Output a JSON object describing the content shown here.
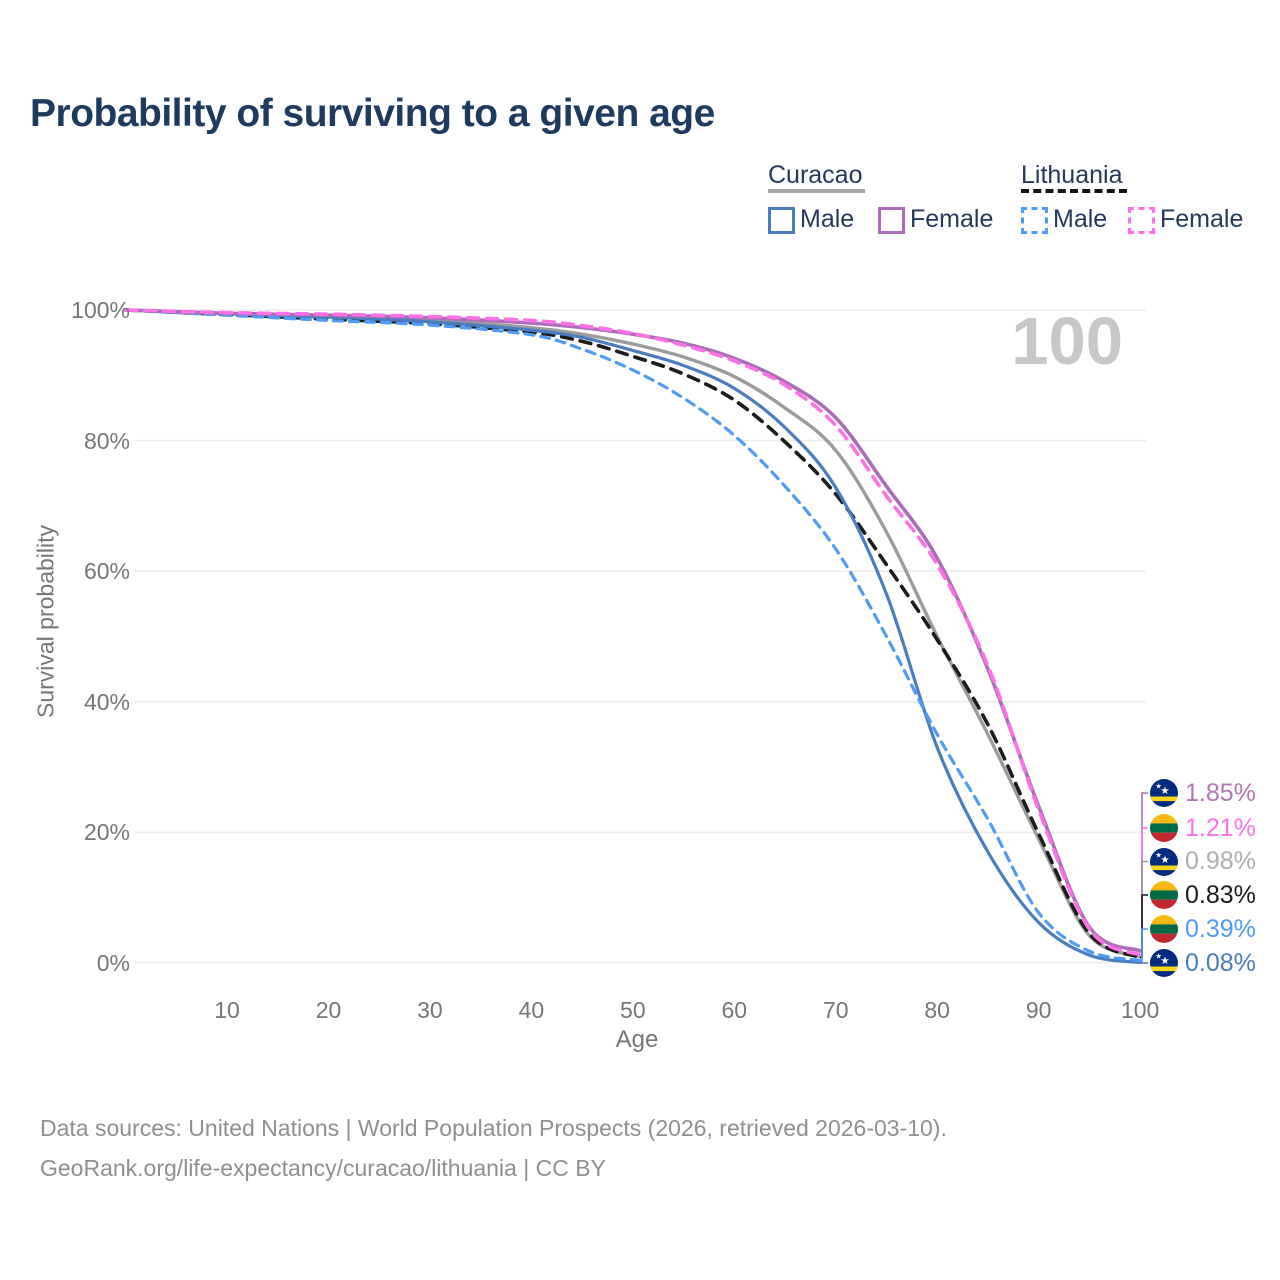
{
  "header": {
    "title": "Probability of surviving to a given age"
  },
  "chart": {
    "age_counter": "100"
  },
  "legend": {
    "groups": [
      {
        "country": "Curacao",
        "line_style": "solid",
        "underline_color": "#a5a5a5",
        "items": [
          {
            "label": "Male",
            "color": "#4a7dbf"
          },
          {
            "label": "Female",
            "color": "#ab6db8"
          }
        ]
      },
      {
        "country": "Lithuania",
        "line_style": "dashed",
        "underline_color": "#141414",
        "items": [
          {
            "label": "Male",
            "color": "#4f9bf5"
          },
          {
            "label": "Female",
            "color": "#fc71e5"
          }
        ]
      }
    ]
  },
  "chart_data": {
    "type": "line",
    "title": "Probability of surviving to a given age",
    "xlabel": "Age",
    "ylabel": "Survival probability",
    "xlim": [
      0,
      100
    ],
    "ylim": [
      0,
      100
    ],
    "grid": "horizontal",
    "x_ticks": [
      10,
      20,
      30,
      40,
      50,
      60,
      70,
      80,
      90,
      100
    ],
    "y_ticks": [
      {
        "value": 0,
        "label": "0%"
      },
      {
        "value": 20,
        "label": "20%"
      },
      {
        "value": 40,
        "label": "40%"
      },
      {
        "value": 60,
        "label": "60%"
      },
      {
        "value": 80,
        "label": "80%"
      },
      {
        "value": 100,
        "label": "100%"
      }
    ],
    "x": [
      0,
      10,
      20,
      30,
      40,
      45,
      50,
      55,
      60,
      65,
      70,
      75,
      80,
      85,
      90,
      95,
      100
    ],
    "series": [
      {
        "name": "Curacao Female",
        "flag": "curacao",
        "dash": false,
        "color": "#ab6db8",
        "label_color": "#b277b2",
        "width": 3.6,
        "end_label": "1.85%",
        "values": [
          100,
          99.5,
          99.2,
          98.8,
          98.0,
          97.3,
          96.3,
          94.9,
          92.6,
          89.0,
          83.5,
          73.0,
          62.0,
          45.0,
          24.0,
          5.5,
          1.85
        ]
      },
      {
        "name": "Lithuania Female",
        "flag": "lithuania",
        "dash": true,
        "color": "#fc71e5",
        "label_color": "#fc71e5",
        "width": 3.6,
        "end_label": "1.21%",
        "values": [
          100,
          99.6,
          99.35,
          99.0,
          98.4,
          97.6,
          96.4,
          94.6,
          92.2,
          88.5,
          82.3,
          71.5,
          61.0,
          45.5,
          23.5,
          5.2,
          1.21
        ]
      },
      {
        "name": "Curacao Total",
        "flag": "curacao",
        "dash": false,
        "color": "#9b9b9b",
        "label_color": "#aeaeae",
        "width": 3.4,
        "end_label": "0.98%",
        "values": [
          100,
          99.45,
          99.0,
          98.4,
          97.3,
          96.3,
          94.8,
          92.8,
          89.8,
          85.0,
          78.5,
          66.0,
          50.0,
          35.0,
          19.0,
          4.2,
          0.98
        ]
      },
      {
        "name": "Lithuania Total",
        "flag": "lithuania",
        "dash": true,
        "color": "#1c1c1c",
        "label_color": "#1c1c1c",
        "width": 3.6,
        "end_label": "0.83%",
        "values": [
          100,
          99.3,
          98.6,
          97.9,
          96.6,
          95.2,
          92.9,
          90.2,
          86.2,
          79.8,
          71.8,
          61.0,
          49.5,
          36.5,
          19.8,
          4.5,
          0.83
        ]
      },
      {
        "name": "Lithuania Male",
        "flag": "lithuania",
        "dash": true,
        "color": "#4f9bf5",
        "label_color": "#4f9bf5",
        "width": 3.2,
        "end_label": "0.39%",
        "values": [
          100,
          99.2,
          98.4,
          97.7,
          96.2,
          94.0,
          90.8,
          86.5,
          80.8,
          73.0,
          63.4,
          50.0,
          35.0,
          22.0,
          7.7,
          1.8,
          0.39
        ]
      },
      {
        "name": "Curacao Male",
        "flag": "curacao",
        "dash": false,
        "color": "#4a7dbf",
        "label_color": "#4a7dbf",
        "width": 3.2,
        "end_label": "0.08%",
        "values": [
          100,
          99.4,
          98.9,
          98.2,
          96.9,
          95.8,
          93.8,
          91.5,
          88.0,
          82.0,
          72.8,
          56.5,
          33.0,
          17.0,
          6.2,
          1.2,
          0.08
        ]
      }
    ],
    "annotations": {
      "age_counter": "100"
    }
  },
  "footer": {
    "line1": "Data sources: United Nations | World Population Prospects (2026, retrieved 2026-03-10).",
    "line2": "GeoRank.org/life-expectancy/curacao/lithuania | CC BY"
  }
}
